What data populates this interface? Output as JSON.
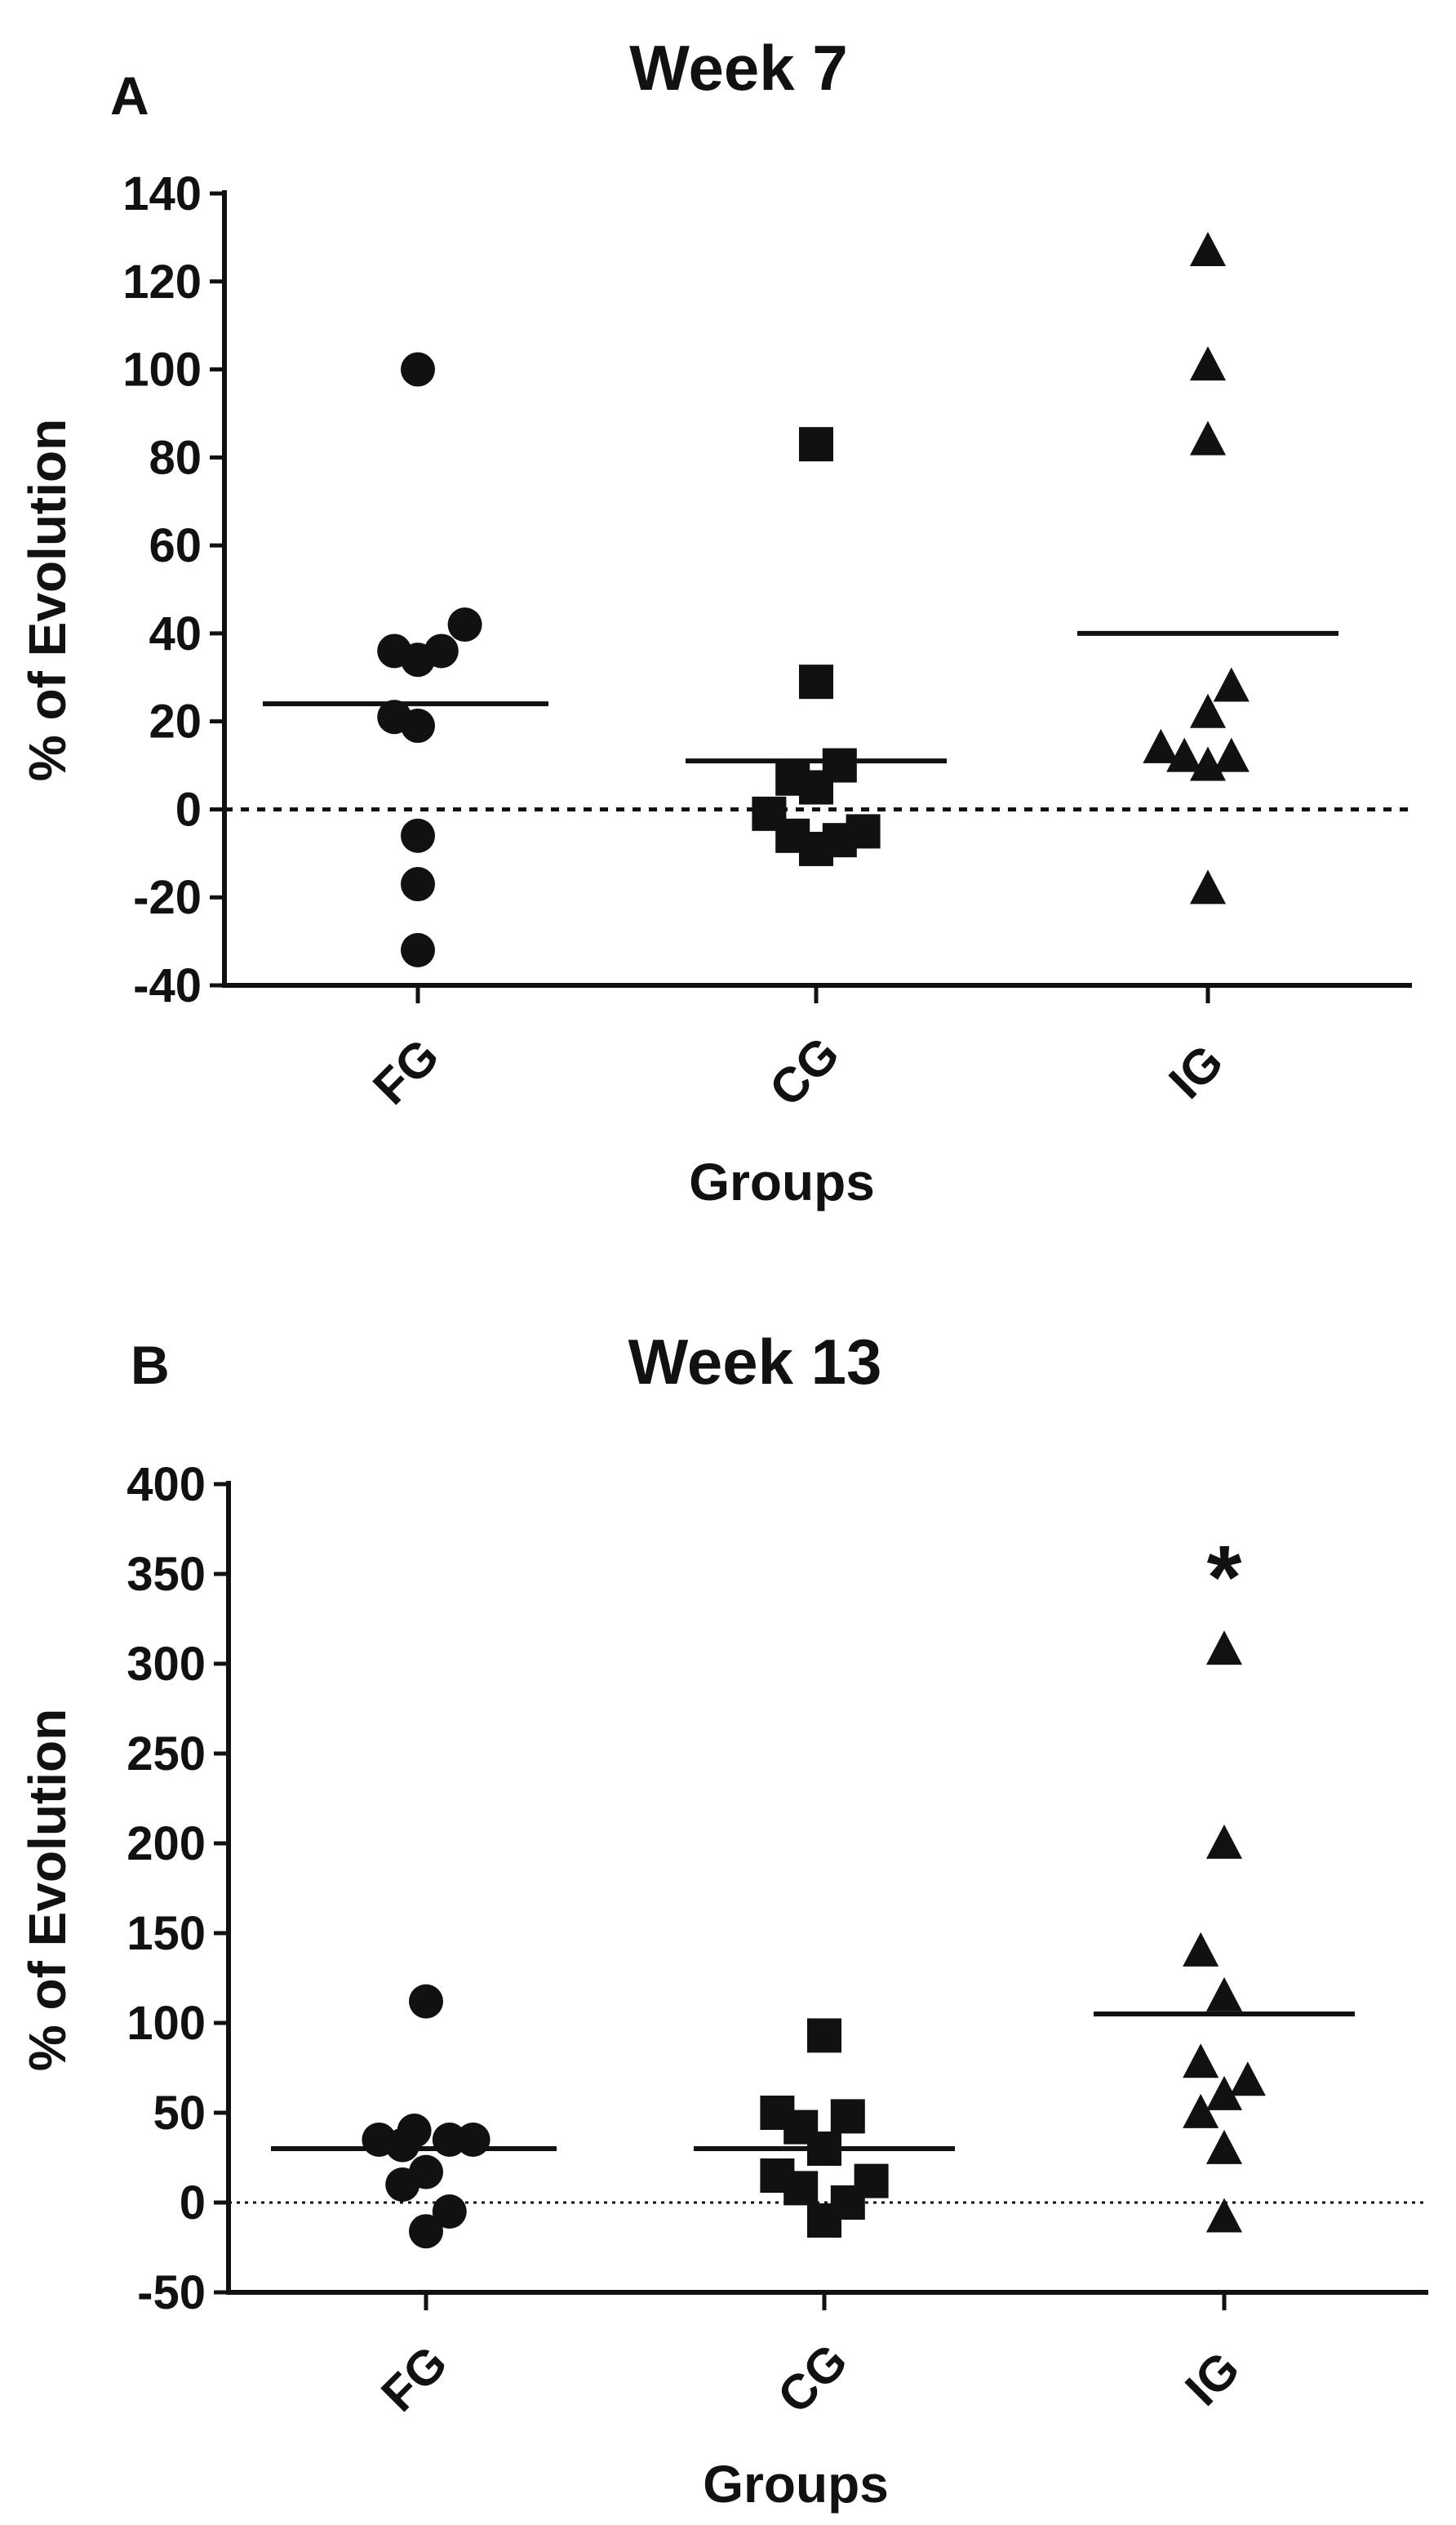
{
  "chart_data": [
    {
      "type": "scatter",
      "panel_letter": "A",
      "title": "Week 7",
      "xlabel": "Groups",
      "ylabel": "% of Evolution",
      "ylim": [
        -40,
        140
      ],
      "yticks": [
        140,
        120,
        100,
        80,
        60,
        40,
        20,
        0,
        -20,
        -40
      ],
      "yticks_labels": [
        "140",
        "120",
        "100",
        "80",
        "60",
        "40",
        "20",
        "0",
        "-20",
        "-40"
      ],
      "categories": [
        "FG",
        "CG",
        "IG"
      ],
      "reference_line": 0,
      "reference_line_style": "dashed",
      "annotation": "",
      "series": [
        {
          "marker": "circle",
          "points": [
            [
              0,
              100
            ],
            [
              -0.12,
              36
            ],
            [
              0,
              34
            ],
            [
              0.12,
              36
            ],
            [
              0.24,
              42
            ],
            [
              -0.12,
              21
            ],
            [
              0,
              19
            ],
            [
              0,
              -6
            ],
            [
              0,
              -17
            ],
            [
              0,
              -32
            ]
          ],
          "mean": 24
        },
        {
          "marker": "square",
          "points": [
            [
              0,
              83
            ],
            [
              0,
              29
            ],
            [
              -0.12,
              7
            ],
            [
              0,
              5
            ],
            [
              0.12,
              10
            ],
            [
              -0.24,
              -1
            ],
            [
              -0.12,
              -6
            ],
            [
              0,
              -9
            ],
            [
              0.12,
              -7
            ],
            [
              0.24,
              -5
            ]
          ],
          "mean": 11
        },
        {
          "marker": "triangle",
          "points": [
            [
              0,
              127
            ],
            [
              0,
              101
            ],
            [
              0,
              84
            ],
            [
              0.12,
              28
            ],
            [
              0,
              22
            ],
            [
              -0.24,
              14
            ],
            [
              -0.12,
              12
            ],
            [
              0,
              10
            ],
            [
              0.12,
              12
            ],
            [
              0,
              -18
            ]
          ],
          "mean": 40
        }
      ]
    },
    {
      "type": "scatter",
      "panel_letter": "B",
      "title": "Week 13",
      "xlabel": "Groups",
      "ylabel": "% of Evolution",
      "ylim": [
        -50,
        400
      ],
      "yticks": [
        400,
        350,
        300,
        250,
        200,
        150,
        100,
        50,
        0,
        -50
      ],
      "yticks_labels": [
        "400",
        "350",
        "300",
        "250",
        "200",
        "150",
        "100",
        "50",
        "0",
        "-50"
      ],
      "categories": [
        "FG",
        "CG",
        "IG"
      ],
      "reference_line": 0,
      "reference_line_style": "dotted",
      "annotation": "*",
      "series": [
        {
          "marker": "circle",
          "points": [
            [
              0,
              112
            ],
            [
              -0.24,
              35
            ],
            [
              -0.12,
              32
            ],
            [
              -0.06,
              40
            ],
            [
              0.12,
              35
            ],
            [
              0.24,
              35
            ],
            [
              -0.12,
              10
            ],
            [
              0,
              17
            ],
            [
              0.12,
              -5
            ],
            [
              0,
              -16
            ]
          ],
          "mean": 30
        },
        {
          "marker": "square",
          "points": [
            [
              0,
              93
            ],
            [
              -0.24,
              50
            ],
            [
              -0.12,
              42
            ],
            [
              0,
              30
            ],
            [
              0.12,
              48
            ],
            [
              -0.24,
              15
            ],
            [
              -0.12,
              8
            ],
            [
              0,
              -10
            ],
            [
              0.12,
              0
            ],
            [
              0.24,
              12
            ]
          ],
          "mean": 30
        },
        {
          "marker": "triangle",
          "points": [
            [
              0,
              308
            ],
            [
              0,
              200
            ],
            [
              -0.12,
              140
            ],
            [
              0,
              115
            ],
            [
              -0.12,
              78
            ],
            [
              0,
              60
            ],
            [
              0.12,
              68
            ],
            [
              -0.12,
              50
            ],
            [
              0,
              30
            ],
            [
              0,
              -8
            ]
          ],
          "mean": 105
        }
      ]
    }
  ]
}
